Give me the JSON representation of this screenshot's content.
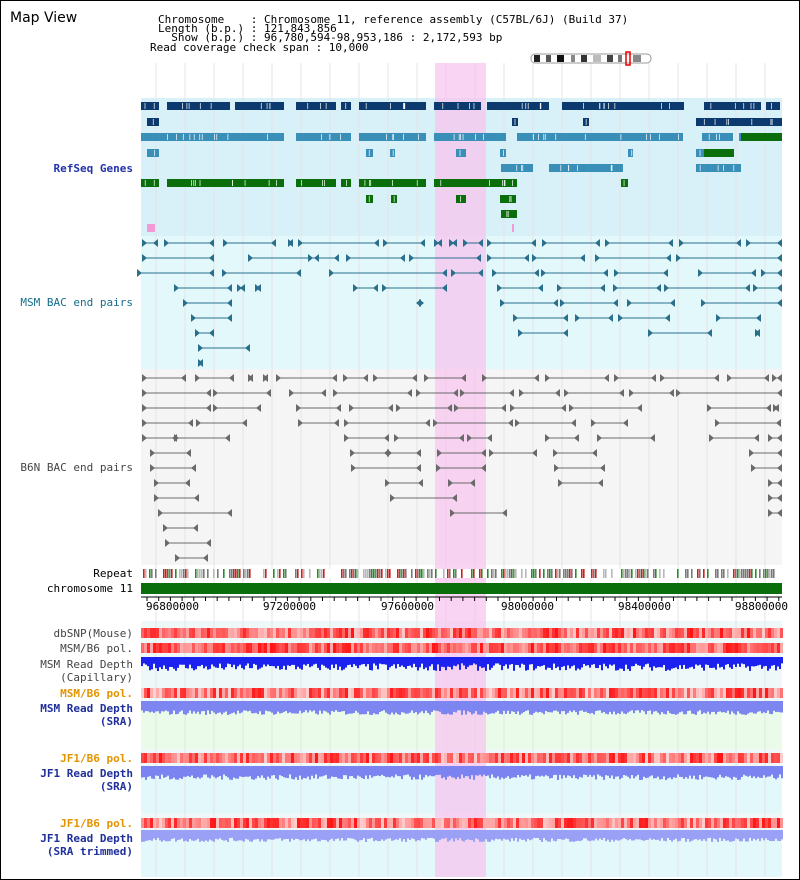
{
  "map_title": "Map View",
  "header": {
    "line1": "Chromosome    : Chromosome 11, reference assembly (C57BL/6J) (Build 37)",
    "line2": "Length (b.p.) : 121,843,856",
    "line3": "  Show (b.p.) : 96,780,594-98,953,186 : 2,172,593 bp",
    "line4": "Read coverage check span : 10,000"
  },
  "tracks": {
    "refseq": "RefSeq Genes",
    "msm_bac": "MSM BAC end pairs",
    "b6n_bac": "B6N BAC end pairs",
    "repeat": "Repeat",
    "chromosome": "chromosome 11",
    "dbsnp": "dbSNP(Mouse)",
    "msm_b6_pol_1": "MSM/B6 pol.",
    "msm_read_depth_cap_1": "MSM Read Depth",
    "msm_read_depth_cap_2": "(Capillary)",
    "msm_b6_pol_2": "MSM/B6 pol.",
    "msm_read_depth_sra_1": "MSM Read Depth",
    "msm_read_depth_sra_2": "(SRA)",
    "jf1_b6_pol_1": "JF1/B6 pol.",
    "jf1_read_depth_1": "JF1 Read Depth",
    "jf1_read_depth_2": "(SRA)",
    "jf1_b6_pol_2": "JF1/B6 pol.",
    "jf1_read_depth_trim_1": "JF1 Read Depth",
    "jf1_read_depth_trim_2": "(SRA trimmed)"
  },
  "axis_ticks": [
    "96800000",
    "97200000",
    "97600000",
    "98000000",
    "98400000",
    "98800000"
  ],
  "colors": {
    "refseq_dark": "#0d3a6e",
    "refseq_mid": "#3a8fb8",
    "refseq_green": "#0a6e0a",
    "highlight": "#f7c6ef",
    "refseq_bg": "#d8f0f8",
    "bac_bg": "#e3f8fb",
    "chromosome_bar": "#0a6e0a"
  }
}
